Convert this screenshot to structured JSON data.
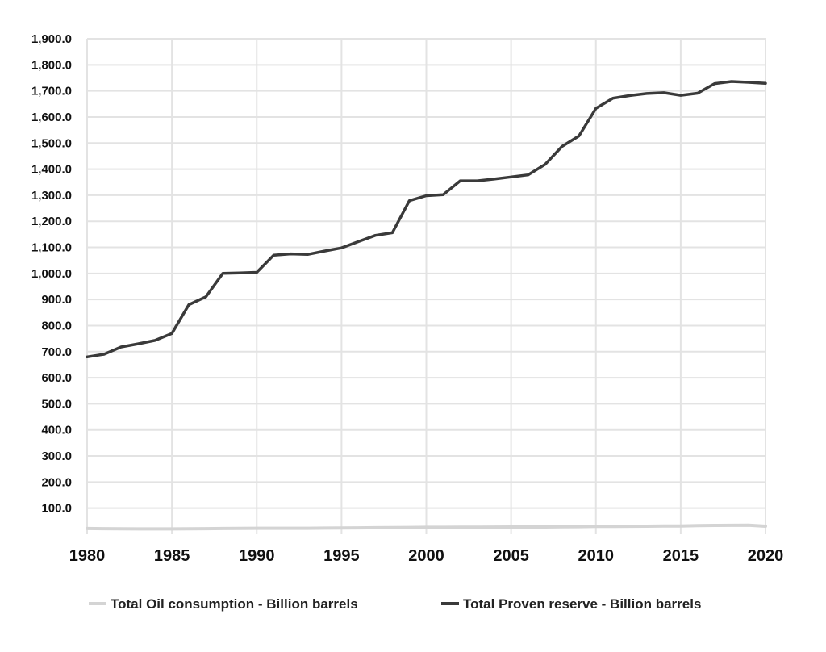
{
  "chart_data": {
    "type": "line",
    "title": "",
    "xlabel": "",
    "ylabel": "",
    "x": [
      1980,
      1981,
      1982,
      1983,
      1984,
      1985,
      1986,
      1987,
      1988,
      1989,
      1990,
      1991,
      1992,
      1993,
      1994,
      1995,
      1996,
      1997,
      1998,
      1999,
      2000,
      2001,
      2002,
      2003,
      2004,
      2005,
      2006,
      2007,
      2008,
      2009,
      2010,
      2011,
      2012,
      2013,
      2014,
      2015,
      2016,
      2017,
      2018,
      2019,
      2020
    ],
    "xlim": [
      1980,
      2020
    ],
    "ylim": [
      0,
      1900
    ],
    "x_ticks": [
      1980,
      1985,
      1990,
      1995,
      2000,
      2005,
      2010,
      2015,
      2020
    ],
    "x_tick_labels": [
      "1980",
      "1985",
      "1990",
      "1995",
      "2000",
      "2005",
      "2010",
      "2015",
      "2020"
    ],
    "y_ticks": [
      100,
      200,
      300,
      400,
      500,
      600,
      700,
      800,
      900,
      1000,
      1100,
      1200,
      1300,
      1400,
      1500,
      1600,
      1700,
      1800,
      1900
    ],
    "y_tick_labels": [
      "100.0",
      "200.0",
      "300.0",
      "400.0",
      "500.0",
      "600.0",
      "700.0",
      "800.0",
      "900.0",
      "1,000.0",
      "1,100.0",
      "1,200.0",
      "1,300.0",
      "1,400.0",
      "1,500.0",
      "1,600.0",
      "1,700.0",
      "1,800.0",
      "1,900.0"
    ],
    "grid": true,
    "legend_position": "bottom",
    "series": [
      {
        "name": "Total Oil consumption - Billion barrels",
        "color": "#d4d4d4",
        "values": [
          22,
          21.5,
          21,
          20.5,
          20.5,
          20.5,
          21,
          21.5,
          22,
          22.5,
          23,
          23,
          23,
          23,
          23.5,
          24,
          24.5,
          25,
          25.5,
          26,
          26.5,
          26.5,
          27,
          27,
          27.5,
          28,
          28,
          28,
          28.5,
          29,
          30,
          30,
          30.5,
          31,
          31.5,
          32,
          33,
          34,
          34.5,
          35,
          31
        ]
      },
      {
        "name": "Total Proven reserve - Billion barrels",
        "color": "#3a3a3a",
        "values": [
          680,
          690,
          718,
          730,
          743,
          770,
          880,
          910,
          1000,
          1002,
          1004,
          1070,
          1075,
          1073,
          1086,
          1098,
          1122,
          1146,
          1156,
          1279,
          1298,
          1302,
          1355,
          1355,
          1362,
          1370,
          1378,
          1418,
          1487,
          1527,
          1633,
          1672,
          1682,
          1690,
          1693,
          1683,
          1691,
          1728,
          1736,
          1733,
          1729
        ]
      }
    ]
  }
}
